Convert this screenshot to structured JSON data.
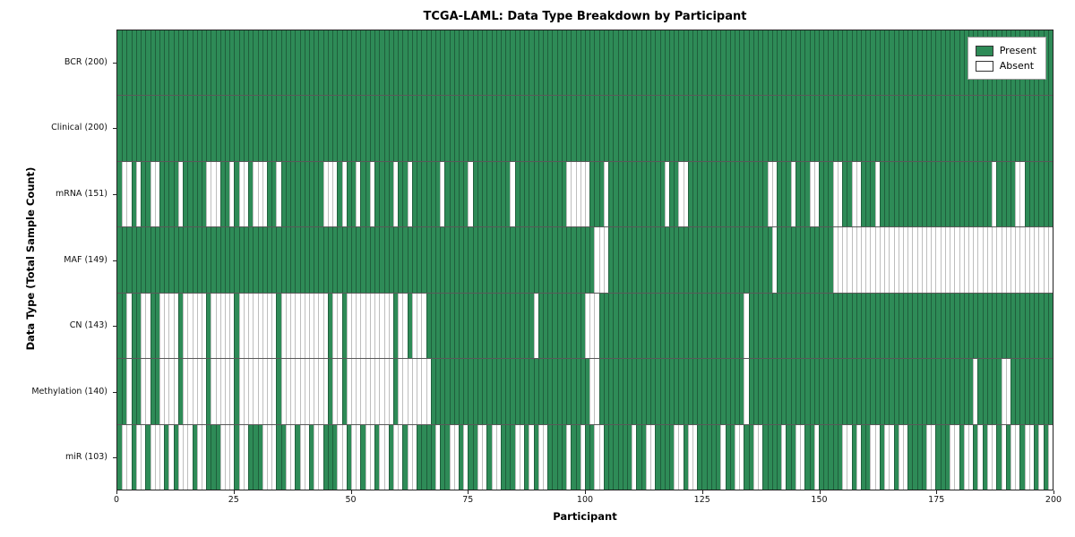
{
  "colors": {
    "present": "#2e8b57",
    "absent": "#ffffff",
    "grid_edge": "#1e3a2b"
  },
  "chart_data": {
    "type": "heatmap",
    "title": "TCGA-LAML: Data Type Breakdown by Participant",
    "xlabel": "Participant",
    "ylabel": "Data Type (Total Sample Count)",
    "legend": {
      "present": "Present",
      "absent": "Absent"
    },
    "legend_position": "upper right",
    "grid": false,
    "n_participants": 200,
    "x_range": [
      0,
      200
    ],
    "x_ticks": [
      0,
      25,
      50,
      75,
      100,
      125,
      150,
      175,
      200
    ],
    "cell_values": {
      "present": 1,
      "absent": 0
    },
    "rows": [
      {
        "name": "BCR",
        "label": "BCR (200)",
        "present_count": 200,
        "absent_count": 0,
        "absent_ranges": []
      },
      {
        "name": "Clinical",
        "label": "Clinical (200)",
        "present_count": 200,
        "absent_count": 0,
        "absent_ranges": []
      },
      {
        "name": "mRNA",
        "label": "mRNA (151)",
        "present_count": 151,
        "absent_count": 49,
        "absent_ranges": [
          [
            1,
            2
          ],
          [
            4,
            4
          ],
          [
            7,
            8
          ],
          [
            13,
            13
          ],
          [
            19,
            21
          ],
          [
            24,
            24
          ],
          [
            26,
            27
          ],
          [
            29,
            31
          ],
          [
            34,
            34
          ],
          [
            44,
            46
          ],
          [
            48,
            48
          ],
          [
            51,
            51
          ],
          [
            54,
            54
          ],
          [
            59,
            59
          ],
          [
            62,
            62
          ],
          [
            69,
            69
          ],
          [
            75,
            75
          ],
          [
            84,
            84
          ],
          [
            96,
            100
          ],
          [
            104,
            104
          ],
          [
            117,
            117
          ],
          [
            120,
            121
          ],
          [
            139,
            140
          ],
          [
            144,
            144
          ],
          [
            148,
            149
          ],
          [
            153,
            154
          ],
          [
            157,
            158
          ],
          [
            162,
            162
          ],
          [
            187,
            187
          ],
          [
            192,
            193
          ]
        ]
      },
      {
        "name": "MAF",
        "label": "MAF (149)",
        "present_count": 149,
        "absent_count": 51,
        "absent_ranges": [
          [
            102,
            104
          ],
          [
            140,
            140
          ],
          [
            153,
            199
          ]
        ]
      },
      {
        "name": "CN",
        "label": "CN (143)",
        "present_count": 143,
        "absent_count": 57,
        "absent_ranges": [
          [
            2,
            2
          ],
          [
            5,
            6
          ],
          [
            9,
            12
          ],
          [
            14,
            18
          ],
          [
            20,
            24
          ],
          [
            26,
            33
          ],
          [
            35,
            44
          ],
          [
            46,
            47
          ],
          [
            49,
            58
          ],
          [
            60,
            61
          ],
          [
            63,
            65
          ],
          [
            89,
            89
          ],
          [
            100,
            102
          ],
          [
            134,
            134
          ]
        ]
      },
      {
        "name": "Methylation",
        "label": "Methylation (140)",
        "present_count": 140,
        "absent_count": 60,
        "absent_ranges": [
          [
            2,
            2
          ],
          [
            5,
            6
          ],
          [
            9,
            12
          ],
          [
            14,
            18
          ],
          [
            20,
            24
          ],
          [
            26,
            33
          ],
          [
            35,
            44
          ],
          [
            46,
            47
          ],
          [
            49,
            58
          ],
          [
            60,
            66
          ],
          [
            101,
            102
          ],
          [
            134,
            134
          ],
          [
            183,
            183
          ],
          [
            189,
            190
          ]
        ]
      },
      {
        "name": "miR",
        "label": "miR (103)",
        "present_count": 103,
        "absent_count": 97,
        "absent_ranges": [
          [
            1,
            2
          ],
          [
            4,
            5
          ],
          [
            7,
            9
          ],
          [
            11,
            11
          ],
          [
            13,
            15
          ],
          [
            17,
            18
          ],
          [
            22,
            24
          ],
          [
            26,
            27
          ],
          [
            31,
            33
          ],
          [
            36,
            37
          ],
          [
            39,
            40
          ],
          [
            42,
            43
          ],
          [
            47,
            48
          ],
          [
            50,
            51
          ],
          [
            53,
            54
          ],
          [
            56,
            57
          ],
          [
            59,
            60
          ],
          [
            62,
            63
          ],
          [
            68,
            68
          ],
          [
            71,
            72
          ],
          [
            74,
            74
          ],
          [
            77,
            78
          ],
          [
            80,
            81
          ],
          [
            85,
            86
          ],
          [
            88,
            88
          ],
          [
            90,
            91
          ],
          [
            96,
            96
          ],
          [
            99,
            99
          ],
          [
            102,
            103
          ],
          [
            110,
            110
          ],
          [
            113,
            114
          ],
          [
            119,
            120
          ],
          [
            122,
            123
          ],
          [
            129,
            129
          ],
          [
            132,
            133
          ],
          [
            136,
            137
          ],
          [
            142,
            142
          ],
          [
            145,
            146
          ],
          [
            149,
            149
          ],
          [
            155,
            156
          ],
          [
            158,
            158
          ],
          [
            161,
            162
          ],
          [
            164,
            165
          ],
          [
            167,
            168
          ],
          [
            173,
            174
          ],
          [
            178,
            179
          ],
          [
            181,
            182
          ],
          [
            184,
            184
          ],
          [
            186,
            187
          ],
          [
            189,
            189
          ],
          [
            191,
            192
          ],
          [
            194,
            195
          ],
          [
            197,
            197
          ],
          [
            199,
            199
          ]
        ]
      }
    ]
  }
}
